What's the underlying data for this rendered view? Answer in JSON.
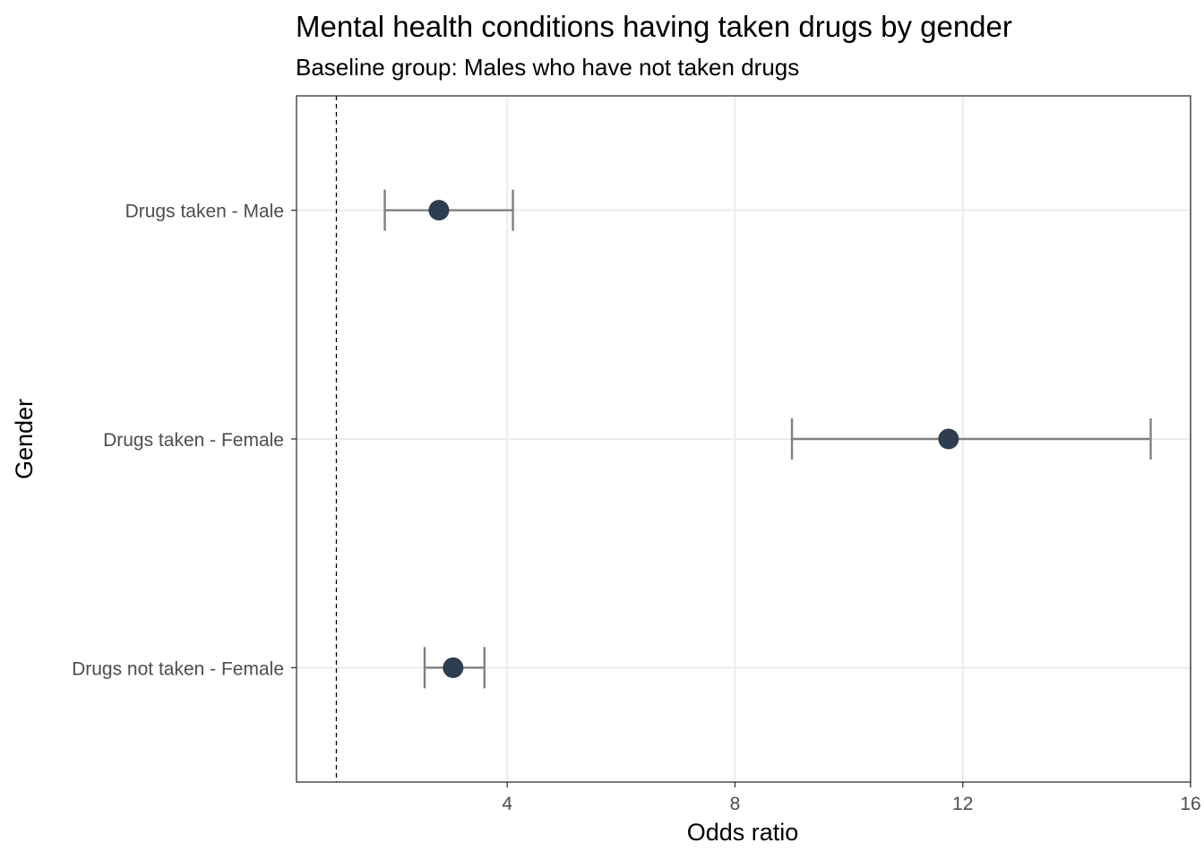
{
  "colors": {
    "point": "#2c3e50",
    "errorbar": "#808080",
    "grid": "#ebebeb",
    "panel_border": "#333333",
    "reference_line": "#000000"
  },
  "chart_data": {
    "type": "forest",
    "title": "Mental health conditions having taken drugs by gender",
    "subtitle": "Baseline group: Males who have not taken drugs",
    "xlabel": "Odds ratio",
    "ylabel": "Gender",
    "xlim": [
      0.3,
      16
    ],
    "x_ticks": [
      4,
      8,
      12,
      16
    ],
    "reference_line": 1,
    "grid": true,
    "categories": [
      "Drugs taken - Male",
      "Drugs taken - Female",
      "Drugs not taken - Female"
    ],
    "estimates": [
      2.8,
      11.75,
      3.05
    ],
    "ci_lower": [
      1.85,
      9.0,
      2.55
    ],
    "ci_upper": [
      4.1,
      15.3,
      3.6
    ]
  }
}
